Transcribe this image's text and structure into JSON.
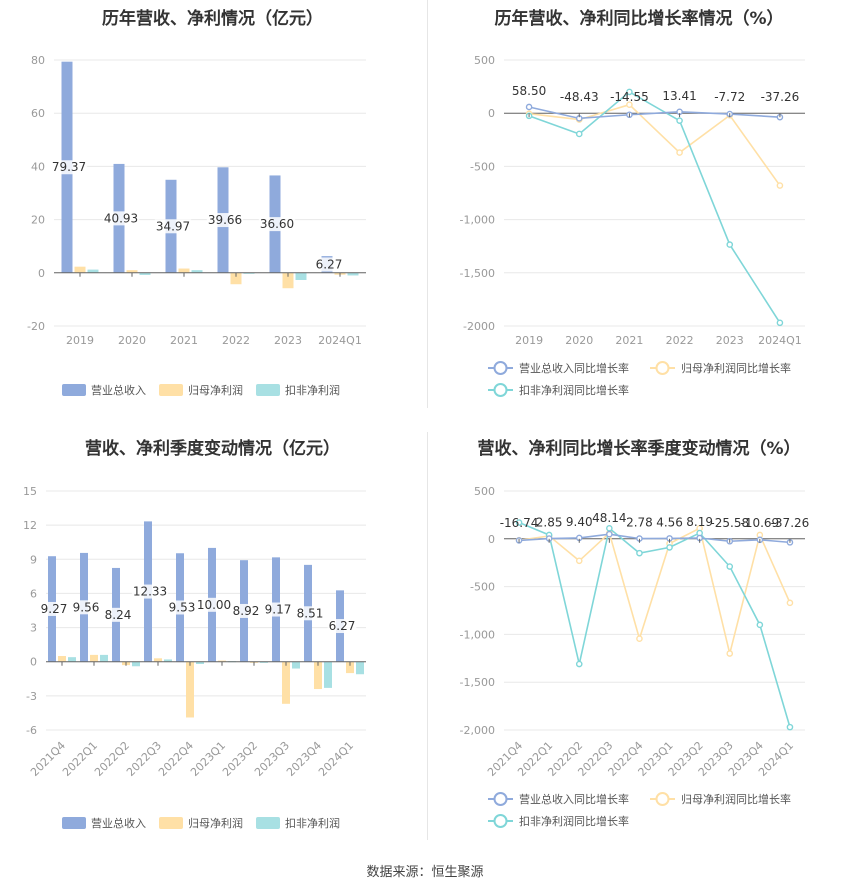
{
  "colors": {
    "revenue": "#8faadc",
    "net_profit": "#ffe0a6",
    "deducted_profit": "#a8e0e3",
    "revenue_line": "#8faadc",
    "net_line": "#ffe0a6",
    "deducted_line": "#7fd6d8",
    "grid": "#e8e8e8",
    "axis_text": "#999999",
    "label_text": "#333333"
  },
  "source": "数据来源：恒生聚源",
  "chart_data": [
    {
      "type": "bar",
      "title": "历年营收、净利情况（亿元）",
      "categories": [
        "2019",
        "2020",
        "2021",
        "2022",
        "2023",
        "2024Q1"
      ],
      "series": [
        {
          "name": "营业总收入",
          "values": [
            79.37,
            40.93,
            34.97,
            39.66,
            36.6,
            6.27
          ]
        },
        {
          "name": "归母净利润",
          "values": [
            2.3,
            1.0,
            1.6,
            -4.3,
            -5.8,
            -0.7
          ]
        },
        {
          "name": "扣非净利润",
          "values": [
            1.2,
            -0.8,
            1.0,
            -0.1,
            -2.7,
            -1.0
          ]
        }
      ],
      "data_labels": [
        "79.37",
        "40.93",
        "34.97",
        "39.66",
        "36.60",
        "6.27"
      ],
      "ylim": [
        -20,
        80
      ],
      "yticks": [
        "-20",
        "0",
        "20",
        "40",
        "60",
        "80"
      ],
      "grid": true,
      "legend": "bottom"
    },
    {
      "type": "line",
      "title": "历年营收、净利同比增长率情况（%）",
      "categories": [
        "2019",
        "2020",
        "2021",
        "2022",
        "2023",
        "2024Q1"
      ],
      "series": [
        {
          "name": "营业总收入同比增长率",
          "values": [
            58.5,
            -48.43,
            -14.55,
            13.41,
            -7.72,
            -37.26
          ]
        },
        {
          "name": "归母净利润同比增长率",
          "values": [
            -5,
            -60,
            80,
            -370,
            -20,
            -680
          ]
        },
        {
          "name": "扣非净利润同比增长率",
          "values": [
            -25,
            -195,
            200,
            -70,
            -1235,
            -1970
          ]
        }
      ],
      "data_labels": [
        "58.50",
        "-48.43",
        "-14.55",
        "13.41",
        "-7.72",
        "-37.26"
      ],
      "ylim": [
        -2000,
        500
      ],
      "yticks": [
        "-2000",
        "-1,500",
        "-1,000",
        "-500",
        "0",
        "500"
      ],
      "grid": true,
      "legend": "bottom"
    },
    {
      "type": "bar",
      "title": "营收、净利季度变动情况（亿元）",
      "categories": [
        "2021Q4",
        "2022Q1",
        "2022Q2",
        "2022Q3",
        "2022Q4",
        "2023Q1",
        "2023Q2",
        "2023Q3",
        "2023Q4",
        "2024Q1"
      ],
      "series": [
        {
          "name": "营业总收入",
          "values": [
            9.27,
            9.56,
            8.24,
            12.33,
            9.53,
            10.0,
            8.92,
            9.17,
            8.51,
            6.27
          ]
        },
        {
          "name": "归母净利润",
          "values": [
            0.5,
            0.6,
            -0.3,
            0.3,
            -4.9,
            0.1,
            -0.1,
            -3.7,
            -2.4,
            -1.0
          ]
        },
        {
          "name": "扣非净利润",
          "values": [
            0.4,
            0.6,
            -0.4,
            0.2,
            -0.2,
            0.05,
            -0.1,
            -0.6,
            -2.3,
            -1.1
          ]
        }
      ],
      "data_labels": [
        "9.27",
        "9.56",
        "8.24",
        "12.33",
        "9.53",
        "10.00",
        "8.92",
        "9.17",
        "8.51",
        "6.27"
      ],
      "ylim": [
        -6,
        15
      ],
      "yticks": [
        "-6",
        "-3",
        "0",
        "3",
        "6",
        "9",
        "12",
        "15"
      ],
      "grid": true,
      "legend": "bottom"
    },
    {
      "type": "line",
      "title": "营收、净利同比增长率季度变动情况（%）",
      "categories": [
        "2021Q4",
        "2022Q1",
        "2022Q2",
        "2022Q3",
        "2022Q4",
        "2023Q1",
        "2023Q2",
        "2023Q3",
        "2023Q4",
        "2024Q1"
      ],
      "series": [
        {
          "name": "营业总收入同比增长率",
          "values": [
            -16.74,
            2.85,
            9.4,
            48.14,
            2.78,
            4.56,
            8.19,
            -25.58,
            -10.69,
            -37.26
          ]
        },
        {
          "name": "归母净利润同比增长率",
          "values": [
            -15,
            30,
            -230,
            60,
            -1045,
            -50,
            110,
            -1200,
            40,
            -670
          ]
        },
        {
          "name": "扣非净利润同比增长率",
          "values": [
            170,
            40,
            -1310,
            110,
            -150,
            -90,
            60,
            -290,
            -900,
            -1970
          ]
        }
      ],
      "data_labels": [
        "-16.74",
        "2.85",
        "9.40",
        "48.14",
        "2.78",
        "4.56",
        "8.19",
        "-25.58",
        "-10.69",
        "-37.26"
      ],
      "ylim": [
        -2000,
        500
      ],
      "yticks": [
        "-2,000",
        "-1,500",
        "-1,000",
        "-500",
        "0",
        "500"
      ],
      "grid": true,
      "legend": "bottom"
    }
  ]
}
